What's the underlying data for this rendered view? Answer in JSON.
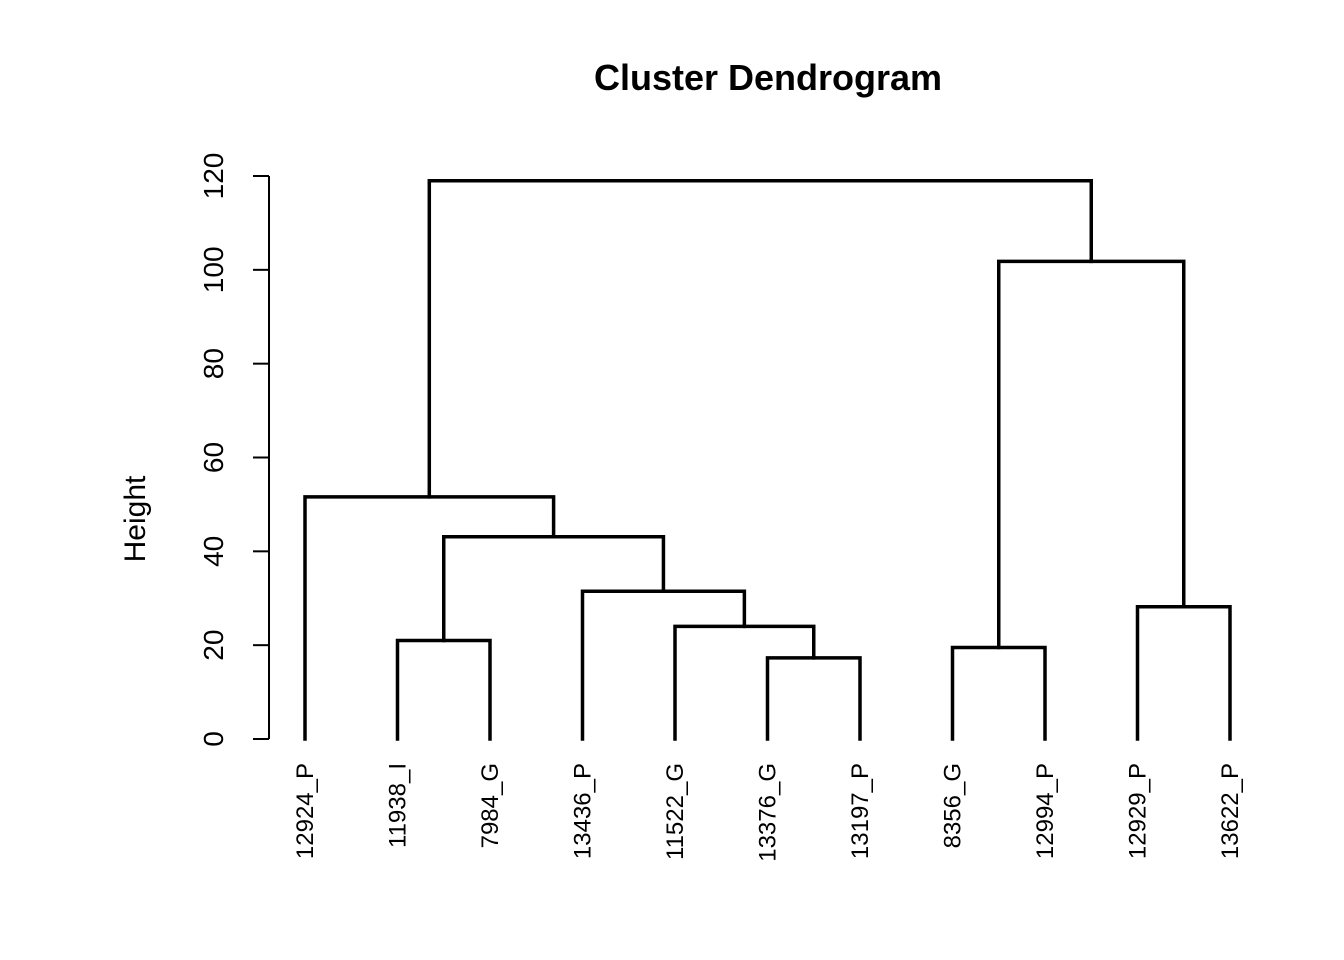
{
  "chart_data": {
    "type": "dendrogram",
    "title": "Cluster Dendrogram",
    "ylabel": "Height",
    "ylim": [
      0,
      120
    ],
    "yticks": [
      0,
      20,
      40,
      60,
      80,
      100,
      120
    ],
    "leaves": [
      "12924_P",
      "11938_I",
      "7984_G",
      "13436_P",
      "11522_G",
      "13376_G",
      "13197_P",
      "8356_G",
      "12994_P",
      "12929_P",
      "13622_P"
    ],
    "merges": [
      {
        "left": "13376_G",
        "right": "13197_P",
        "height": 17.3
      },
      {
        "left": "8356_G",
        "right": "12994_P",
        "height": 19.5
      },
      {
        "left": "11938_I",
        "right": "7984_G",
        "height": 21.0
      },
      {
        "left": "11522_G",
        "right": "m1",
        "height": 24.0
      },
      {
        "left": "12929_P",
        "right": "13622_P",
        "height": 28.2
      },
      {
        "left": "13436_P",
        "right": "m4",
        "height": 31.5
      },
      {
        "left": "m3",
        "right": "m6",
        "height": 43.1
      },
      {
        "left": "12924_P",
        "right": "m7",
        "height": 51.6
      },
      {
        "left": "m2",
        "right": "m5",
        "height": 101.8
      },
      {
        "left": "m8",
        "right": "m9",
        "height": 119.0
      }
    ],
    "colors": {
      "line": "#000000",
      "background": "#ffffff"
    }
  }
}
